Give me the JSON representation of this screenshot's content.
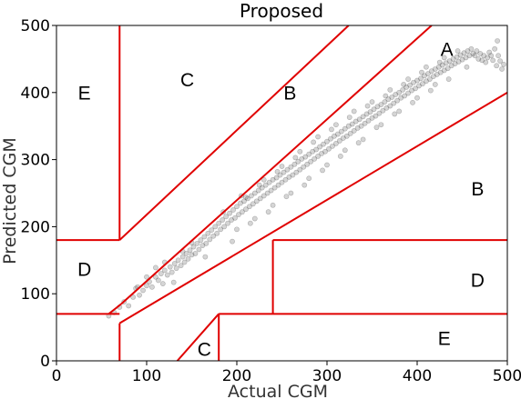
{
  "chart_data": {
    "type": "scatter",
    "title": "Proposed",
    "xlabel": "Actual CGM",
    "ylabel": "Predicted CGM",
    "xlim": [
      0,
      500
    ],
    "ylim": [
      0,
      500
    ],
    "xticks": [
      0,
      100,
      200,
      300,
      400,
      500
    ],
    "yticks": [
      0,
      100,
      200,
      300,
      400,
      500
    ],
    "grid": false,
    "point_color": "#404040",
    "zone_line_color": "#e00000",
    "zone_lines": [
      [
        [
          70,
          500
        ],
        [
          70,
          180
        ]
      ],
      [
        [
          0,
          180
        ],
        [
          70,
          180
        ]
      ],
      [
        [
          70,
          180
        ],
        [
          324,
          500
        ]
      ],
      [
        [
          58,
          70
        ],
        [
          72,
          85
        ]
      ],
      [
        [
          72,
          85
        ],
        [
          416,
          500
        ]
      ],
      [
        [
          70,
          56
        ],
        [
          500,
          400
        ]
      ],
      [
        [
          0,
          70
        ],
        [
          70,
          70
        ]
      ],
      [
        [
          70,
          56
        ],
        [
          70,
          0
        ]
      ],
      [
        [
          240,
          180
        ],
        [
          500,
          180
        ]
      ],
      [
        [
          240,
          180
        ],
        [
          240,
          70
        ]
      ],
      [
        [
          180,
          70
        ],
        [
          500,
          70
        ]
      ],
      [
        [
          180,
          70
        ],
        [
          180,
          0
        ]
      ],
      [
        [
          134,
          0
        ],
        [
          180,
          70
        ]
      ]
    ],
    "zone_labels": [
      {
        "text": "A",
        "x": 433,
        "y": 462
      },
      {
        "text": "B",
        "x": 259,
        "y": 397
      },
      {
        "text": "B",
        "x": 467,
        "y": 254
      },
      {
        "text": "C",
        "x": 145,
        "y": 417
      },
      {
        "text": "C",
        "x": 164,
        "y": 15
      },
      {
        "text": "D",
        "x": 31,
        "y": 134
      },
      {
        "text": "D",
        "x": 467,
        "y": 118
      },
      {
        "text": "E",
        "x": 31,
        "y": 397
      },
      {
        "text": "E",
        "x": 430,
        "y": 31
      }
    ],
    "points": [
      [
        58,
        67
      ],
      [
        64,
        72
      ],
      [
        70,
        80
      ],
      [
        75,
        88
      ],
      [
        80,
        82
      ],
      [
        85,
        95
      ],
      [
        88,
        108
      ],
      [
        92,
        98
      ],
      [
        96,
        105
      ],
      [
        100,
        112
      ],
      [
        103,
        118
      ],
      [
        106,
        110
      ],
      [
        110,
        125
      ],
      [
        113,
        120
      ],
      [
        116,
        130
      ],
      [
        118,
        115
      ],
      [
        120,
        135
      ],
      [
        123,
        128
      ],
      [
        126,
        140
      ],
      [
        128,
        132
      ],
      [
        131,
        145
      ],
      [
        133,
        138
      ],
      [
        135,
        150
      ],
      [
        138,
        142
      ],
      [
        140,
        155
      ],
      [
        142,
        147
      ],
      [
        144,
        160
      ],
      [
        146,
        152
      ],
      [
        148,
        165
      ],
      [
        150,
        158
      ],
      [
        152,
        170
      ],
      [
        154,
        160
      ],
      [
        156,
        175
      ],
      [
        158,
        166
      ],
      [
        160,
        180
      ],
      [
        162,
        172
      ],
      [
        164,
        185
      ],
      [
        166,
        175
      ],
      [
        168,
        190
      ],
      [
        170,
        181
      ],
      [
        172,
        195
      ],
      [
        174,
        186
      ],
      [
        176,
        200
      ],
      [
        178,
        190
      ],
      [
        180,
        205
      ],
      [
        182,
        196
      ],
      [
        184,
        210
      ],
      [
        186,
        200
      ],
      [
        188,
        215
      ],
      [
        190,
        205
      ],
      [
        192,
        220
      ],
      [
        194,
        210
      ],
      [
        196,
        225
      ],
      [
        198,
        213
      ],
      [
        200,
        230
      ],
      [
        202,
        218
      ],
      [
        204,
        235
      ],
      [
        206,
        222
      ],
      [
        208,
        238
      ],
      [
        210,
        226
      ],
      [
        212,
        242
      ],
      [
        214,
        230
      ],
      [
        216,
        246
      ],
      [
        218,
        234
      ],
      [
        220,
        250
      ],
      [
        222,
        238
      ],
      [
        224,
        254
      ],
      [
        226,
        242
      ],
      [
        228,
        258
      ],
      [
        230,
        246
      ],
      [
        232,
        262
      ],
      [
        234,
        250
      ],
      [
        236,
        266
      ],
      [
        238,
        254
      ],
      [
        240,
        270
      ],
      [
        242,
        258
      ],
      [
        244,
        273
      ],
      [
        246,
        262
      ],
      [
        248,
        277
      ],
      [
        250,
        266
      ],
      [
        252,
        281
      ],
      [
        254,
        270
      ],
      [
        256,
        285
      ],
      [
        258,
        274
      ],
      [
        260,
        289
      ],
      [
        262,
        277
      ],
      [
        264,
        293
      ],
      [
        266,
        281
      ],
      [
        268,
        297
      ],
      [
        270,
        285
      ],
      [
        272,
        301
      ],
      [
        274,
        289
      ],
      [
        276,
        304
      ],
      [
        278,
        293
      ],
      [
        280,
        308
      ],
      [
        282,
        297
      ],
      [
        284,
        312
      ],
      [
        286,
        301
      ],
      [
        288,
        315
      ],
      [
        290,
        305
      ],
      [
        292,
        319
      ],
      [
        294,
        309
      ],
      [
        296,
        323
      ],
      [
        298,
        312
      ],
      [
        300,
        327
      ],
      [
        302,
        316
      ],
      [
        304,
        331
      ],
      [
        306,
        320
      ],
      [
        308,
        335
      ],
      [
        310,
        324
      ],
      [
        312,
        338
      ],
      [
        314,
        328
      ],
      [
        316,
        342
      ],
      [
        318,
        332
      ],
      [
        320,
        346
      ],
      [
        322,
        335
      ],
      [
        324,
        350
      ],
      [
        326,
        339
      ],
      [
        328,
        353
      ],
      [
        330,
        343
      ],
      [
        332,
        357
      ],
      [
        334,
        347
      ],
      [
        336,
        360
      ],
      [
        338,
        350
      ],
      [
        340,
        364
      ],
      [
        342,
        354
      ],
      [
        344,
        368
      ],
      [
        346,
        358
      ],
      [
        348,
        371
      ],
      [
        350,
        362
      ],
      [
        352,
        375
      ],
      [
        354,
        365
      ],
      [
        356,
        379
      ],
      [
        358,
        369
      ],
      [
        360,
        382
      ],
      [
        362,
        373
      ],
      [
        364,
        386
      ],
      [
        366,
        377
      ],
      [
        368,
        390
      ],
      [
        370,
        380
      ],
      [
        372,
        393
      ],
      [
        374,
        384
      ],
      [
        376,
        397
      ],
      [
        378,
        388
      ],
      [
        380,
        400
      ],
      [
        382,
        392
      ],
      [
        384,
        404
      ],
      [
        386,
        395
      ],
      [
        388,
        408
      ],
      [
        390,
        399
      ],
      [
        392,
        411
      ],
      [
        394,
        403
      ],
      [
        396,
        415
      ],
      [
        398,
        406
      ],
      [
        400,
        418
      ],
      [
        402,
        410
      ],
      [
        404,
        421
      ],
      [
        406,
        413
      ],
      [
        408,
        425
      ],
      [
        410,
        417
      ],
      [
        412,
        428
      ],
      [
        414,
        420
      ],
      [
        416,
        432
      ],
      [
        418,
        424
      ],
      [
        420,
        435
      ],
      [
        422,
        427
      ],
      [
        424,
        438
      ],
      [
        426,
        430
      ],
      [
        428,
        441
      ],
      [
        430,
        433
      ],
      [
        432,
        444
      ],
      [
        434,
        436
      ],
      [
        436,
        447
      ],
      [
        438,
        440
      ],
      [
        440,
        450
      ],
      [
        442,
        443
      ],
      [
        444,
        453
      ],
      [
        446,
        446
      ],
      [
        448,
        456
      ],
      [
        450,
        449
      ],
      [
        452,
        459
      ],
      [
        454,
        452
      ],
      [
        456,
        462
      ],
      [
        458,
        455
      ],
      [
        460,
        465
      ],
      [
        462,
        458
      ],
      [
        464,
        455
      ],
      [
        466,
        462
      ],
      [
        468,
        450
      ],
      [
        470,
        458
      ],
      [
        472,
        448
      ],
      [
        474,
        455
      ],
      [
        476,
        445
      ],
      [
        478,
        452
      ],
      [
        480,
        460
      ],
      [
        482,
        455
      ],
      [
        484,
        448
      ],
      [
        486,
        465
      ],
      [
        488,
        440
      ],
      [
        490,
        455
      ],
      [
        492,
        447
      ],
      [
        494,
        435
      ],
      [
        496,
        442
      ],
      [
        489,
        477
      ],
      [
        150,
        176
      ],
      [
        165,
        155
      ],
      [
        185,
        222
      ],
      [
        195,
        178
      ],
      [
        205,
        246
      ],
      [
        215,
        205
      ],
      [
        225,
        262
      ],
      [
        235,
        222
      ],
      [
        245,
        282
      ],
      [
        255,
        245
      ],
      [
        265,
        303
      ],
      [
        275,
        262
      ],
      [
        285,
        326
      ],
      [
        295,
        284
      ],
      [
        305,
        345
      ],
      [
        315,
        305
      ],
      [
        325,
        363
      ],
      [
        335,
        325
      ],
      [
        345,
        380
      ],
      [
        355,
        348
      ],
      [
        365,
        395
      ],
      [
        375,
        368
      ],
      [
        385,
        412
      ],
      [
        395,
        385
      ],
      [
        405,
        430
      ],
      [
        415,
        403
      ],
      [
        425,
        445
      ],
      [
        435,
        420
      ],
      [
        445,
        462
      ],
      [
        455,
        438
      ],
      [
        120,
        147
      ],
      [
        130,
        117
      ],
      [
        140,
        163
      ],
      [
        110,
        139
      ],
      [
        100,
        125
      ],
      [
        90,
        110
      ],
      [
        200,
        196
      ],
      [
        210,
        244
      ],
      [
        220,
        212
      ],
      [
        230,
        270
      ],
      [
        240,
        232
      ],
      [
        250,
        290
      ],
      [
        260,
        250
      ],
      [
        270,
        312
      ],
      [
        280,
        272
      ],
      [
        290,
        334
      ],
      [
        300,
        292
      ],
      [
        310,
        352
      ],
      [
        320,
        314
      ],
      [
        330,
        372
      ],
      [
        340,
        330
      ],
      [
        350,
        386
      ],
      [
        360,
        352
      ],
      [
        370,
        404
      ],
      [
        380,
        372
      ],
      [
        390,
        420
      ],
      [
        400,
        392
      ],
      [
        410,
        438
      ],
      [
        420,
        412
      ],
      [
        430,
        452
      ]
    ]
  }
}
